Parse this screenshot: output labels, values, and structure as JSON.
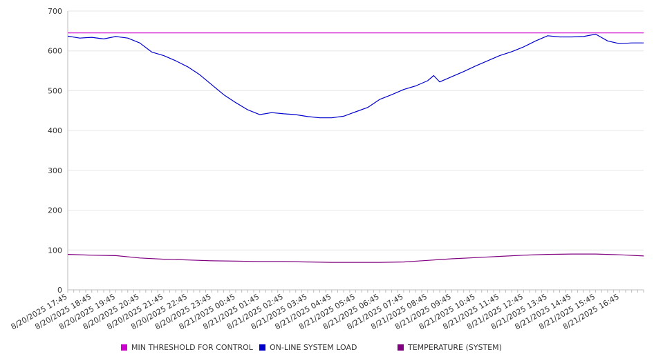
{
  "chart_data": {
    "type": "line",
    "title": "",
    "xlabel": "",
    "ylabel": "",
    "ylim": [
      0,
      700
    ],
    "yticks": [
      0,
      100,
      200,
      300,
      400,
      500,
      600,
      700
    ],
    "grid": true,
    "legend_position": "bottom",
    "x_tick_labels": [
      "8/20/2025 17:45",
      "8/20/2025 18:45",
      "8/20/2025 19:45",
      "8/20/2025 20:45",
      "8/20/2025 21:45",
      "8/20/2025 22:45",
      "8/20/2025 23:45",
      "8/21/2025 00:45",
      "8/21/2025 01:45",
      "8/21/2025 02:45",
      "8/21/2025 03:45",
      "8/21/2025 04:45",
      "8/21/2025 05:45",
      "8/21/2025 06:45",
      "8/21/2025 07:45",
      "8/21/2025 08:45",
      "8/21/2025 09:45",
      "8/21/2025 10:45",
      "8/21/2025 11:45",
      "8/21/2025 12:45",
      "8/21/2025 13:45",
      "8/21/2025 14:45",
      "8/21/2025 15:45",
      "8/21/2025 16:45"
    ],
    "series": [
      {
        "name": "MIN THRESHOLD FOR CONTROL",
        "color": "#cc00cc",
        "x": [
          "8/20/2025 17:45",
          "8/21/2025 17:45"
        ],
        "values": [
          645,
          645
        ]
      },
      {
        "name": "ON-LINE SYSTEM LOAD",
        "color": "#0000cc",
        "x": [
          "8/20/2025 17:45",
          "8/20/2025 18:15",
          "8/20/2025 18:45",
          "8/20/2025 19:15",
          "8/20/2025 19:45",
          "8/20/2025 20:15",
          "8/20/2025 20:45",
          "8/20/2025 21:15",
          "8/20/2025 21:45",
          "8/20/2025 22:15",
          "8/20/2025 22:45",
          "8/20/2025 23:15",
          "8/20/2025 23:45",
          "8/21/2025 00:15",
          "8/21/2025 00:45",
          "8/21/2025 01:15",
          "8/21/2025 01:45",
          "8/21/2025 02:15",
          "8/21/2025 02:45",
          "8/21/2025 03:15",
          "8/21/2025 03:45",
          "8/21/2025 04:15",
          "8/21/2025 04:45",
          "8/21/2025 05:15",
          "8/21/2025 05:45",
          "8/21/2025 06:15",
          "8/21/2025 06:45",
          "8/21/2025 07:15",
          "8/21/2025 07:45",
          "8/21/2025 08:15",
          "8/21/2025 08:45",
          "8/21/2025 09:00",
          "8/21/2025 09:15",
          "8/21/2025 09:45",
          "8/21/2025 10:15",
          "8/21/2025 10:45",
          "8/21/2025 11:15",
          "8/21/2025 11:45",
          "8/21/2025 12:15",
          "8/21/2025 12:45",
          "8/21/2025 13:15",
          "8/21/2025 13:45",
          "8/21/2025 14:15",
          "8/21/2025 14:45",
          "8/21/2025 15:15",
          "8/21/2025 15:45",
          "8/21/2025 16:15",
          "8/21/2025 16:45",
          "8/21/2025 17:15",
          "8/21/2025 17:45"
        ],
        "values": [
          637,
          632,
          634,
          630,
          636,
          632,
          620,
          597,
          588,
          575,
          560,
          540,
          515,
          490,
          470,
          452,
          440,
          445,
          442,
          440,
          435,
          432,
          432,
          436,
          447,
          458,
          478,
          490,
          503,
          512,
          525,
          538,
          522,
          535,
          548,
          562,
          575,
          588,
          598,
          610,
          625,
          638,
          635,
          635,
          636,
          642,
          625,
          618,
          620,
          620
        ]
      },
      {
        "name": "TEMPERATURE (SYSTEM)",
        "color": "#800080",
        "x": [
          "8/20/2025 17:45",
          "8/20/2025 18:45",
          "8/20/2025 19:45",
          "8/20/2025 20:45",
          "8/20/2025 21:45",
          "8/20/2025 22:45",
          "8/20/2025 23:45",
          "8/21/2025 00:45",
          "8/21/2025 01:45",
          "8/21/2025 02:45",
          "8/21/2025 03:45",
          "8/21/2025 04:45",
          "8/21/2025 05:45",
          "8/21/2025 06:45",
          "8/21/2025 07:45",
          "8/21/2025 08:45",
          "8/21/2025 09:45",
          "8/21/2025 10:45",
          "8/21/2025 11:45",
          "8/21/2025 12:45",
          "8/21/2025 13:45",
          "8/21/2025 14:45",
          "8/21/2025 15:45",
          "8/21/2025 16:45",
          "8/21/2025 17:45"
        ],
        "values": [
          89,
          87,
          86,
          80,
          77,
          75,
          73,
          72,
          71,
          71,
          70,
          69,
          69,
          69,
          70,
          74,
          78,
          81,
          84,
          87,
          89,
          90,
          90,
          88,
          85
        ]
      }
    ]
  }
}
